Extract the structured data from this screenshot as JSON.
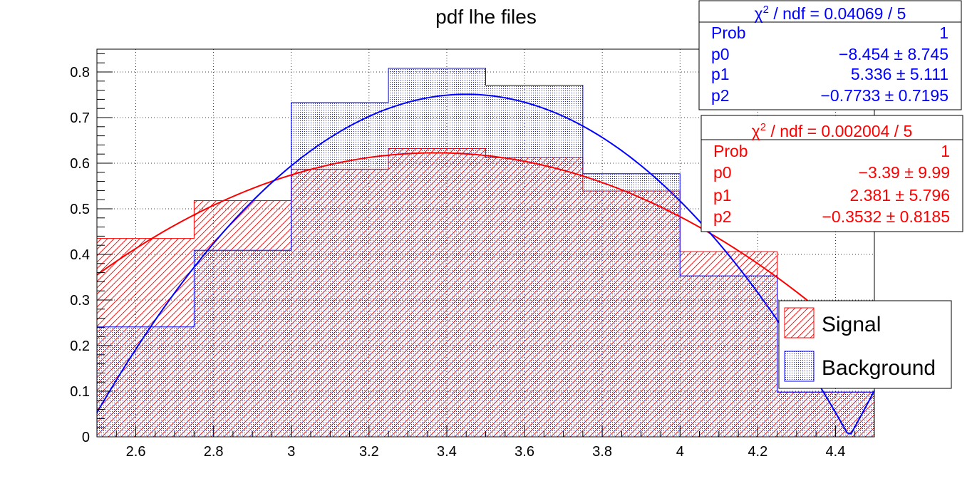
{
  "chart_data": {
    "type": "bar",
    "title": "pdf lhe files",
    "xlabel": "",
    "ylabel": "",
    "xlim": [
      2.5,
      4.5
    ],
    "ylim": [
      0,
      0.85
    ],
    "grid": true,
    "x_ticks": [
      "2.6",
      "2.8",
      "3",
      "3.2",
      "3.4",
      "3.6",
      "3.8",
      "4",
      "4.2",
      "4.4"
    ],
    "x_tick_values": [
      2.6,
      2.8,
      3.0,
      3.2,
      3.4,
      3.6,
      3.8,
      4.0,
      4.2,
      4.4
    ],
    "y_ticks": [
      "0",
      "0.1",
      "0.2",
      "0.3",
      "0.4",
      "0.5",
      "0.6",
      "0.7",
      "0.8"
    ],
    "y_tick_values": [
      0,
      0.1,
      0.2,
      0.3,
      0.4,
      0.5,
      0.6,
      0.7,
      0.8
    ],
    "bin_edges": [
      2.5,
      2.75,
      3.0,
      3.25,
      3.5,
      3.75,
      4.0,
      4.25,
      4.5
    ],
    "series": [
      {
        "name": "Signal",
        "color": "#ff0000",
        "fill": "hatch",
        "values": [
          0.435,
          0.518,
          0.587,
          0.632,
          0.612,
          0.539,
          0.406,
          0.098
        ],
        "fit": {
          "p0": -3.39,
          "p1": 2.381,
          "p2": -0.3532
        }
      },
      {
        "name": "Background",
        "color": "#0000ff",
        "fill": "dots",
        "values": [
          0.241,
          0.409,
          0.733,
          0.808,
          0.771,
          0.577,
          0.353,
          0.098
        ],
        "fit": {
          "p0": -8.454,
          "p1": 5.336,
          "p2": -0.7733
        }
      }
    ],
    "legend": {
      "position": "right",
      "entries": [
        "Signal",
        "Background"
      ]
    },
    "stats_boxes": [
      {
        "color": "#0000ff",
        "header_suffix": " / ndf = 0.04069 / 5",
        "rows": [
          {
            "label": "Prob",
            "value": "1"
          },
          {
            "label": "p0",
            "value": "−8.454 ± 8.745"
          },
          {
            "label": "p1",
            "value": "5.336 ± 5.111"
          },
          {
            "label": "p2",
            "value": "−0.7733 ± 0.7195"
          }
        ]
      },
      {
        "color": "#ff0000",
        "header_suffix": " / ndf = 0.002004 / 5",
        "rows": [
          {
            "label": "Prob",
            "value": "1"
          },
          {
            "label": "p0",
            "value": "−3.39 ± 9.99"
          },
          {
            "label": "p1",
            "value": "2.381 ± 5.796"
          },
          {
            "label": "p2",
            "value": "−0.3532 ± 0.8185"
          }
        ]
      }
    ]
  }
}
